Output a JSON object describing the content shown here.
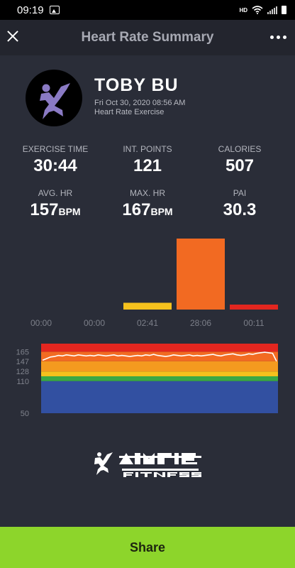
{
  "status": {
    "time": "09:19",
    "hd": "HD"
  },
  "header": {
    "title": "Heart Rate Summary"
  },
  "user": {
    "name": "TOBY BU",
    "date": "Fri Oct 30, 2020 08:56 AM",
    "type": "Heart Rate Exercise"
  },
  "stats": [
    {
      "label": "EXERCISE TIME",
      "value": "30:44",
      "unit": ""
    },
    {
      "label": "INT. POINTS",
      "value": "121",
      "unit": ""
    },
    {
      "label": "CALORIES",
      "value": "507",
      "unit": ""
    },
    {
      "label": "AVG. HR",
      "value": "157",
      "unit": "BPM"
    },
    {
      "label": "MAX. HR",
      "value": "167",
      "unit": "BPM"
    },
    {
      "label": "PAI",
      "value": "30.3",
      "unit": ""
    }
  ],
  "chart_data": [
    {
      "type": "bar",
      "categories": [
        "00:00",
        "00:00",
        "02:41",
        "28:06",
        "00:11"
      ],
      "values": [
        0,
        0,
        161,
        1686,
        11
      ],
      "colors": [
        "#2f4ea0",
        "#3aa84a",
        "#f5c11d",
        "#f26a22",
        "#e3261f"
      ]
    },
    {
      "type": "line",
      "ticks": [
        165,
        147,
        128,
        110,
        50
      ],
      "ylim": [
        50,
        180
      ],
      "zones": [
        {
          "from": 50,
          "to": 110,
          "color": "#3250a1"
        },
        {
          "from": 110,
          "to": 119,
          "color": "#3aa845"
        },
        {
          "from": 119,
          "to": 128,
          "color": "#f5c11d"
        },
        {
          "from": 128,
          "to": 147,
          "color": "#f49a1f"
        },
        {
          "from": 147,
          "to": 165,
          "color": "#f26b22"
        },
        {
          "from": 165,
          "to": 180,
          "color": "#e3261f"
        }
      ],
      "series": [
        {
          "values": [
            149,
            152,
            155,
            156,
            158,
            157,
            159,
            158,
            157,
            159,
            158,
            157,
            158,
            157,
            159,
            158,
            157,
            158,
            159,
            157,
            158,
            157,
            156,
            157,
            158,
            157,
            159,
            158,
            160,
            158,
            157,
            156,
            157,
            159,
            158,
            157,
            158,
            159,
            157,
            158,
            157,
            158,
            159,
            160,
            158,
            157,
            159,
            160,
            161,
            159,
            158,
            159,
            161,
            160,
            162,
            163,
            164,
            163,
            162,
            147
          ]
        }
      ]
    }
  ],
  "share": {
    "label": "Share"
  }
}
